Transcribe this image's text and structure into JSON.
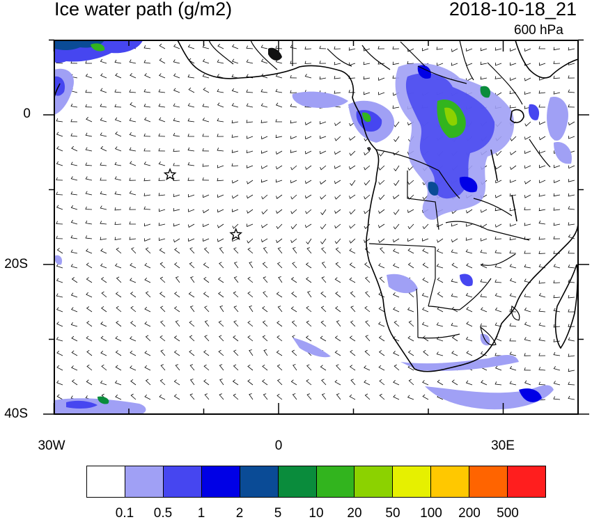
{
  "header": {
    "title": "Ice water path (g/m2)",
    "datetime": "2018-10-18_21",
    "level": "600 hPa"
  },
  "axes": {
    "lat_labels": [
      "0",
      "20S",
      "40S"
    ],
    "lon_labels": [
      "30W",
      "0",
      "30E"
    ]
  },
  "colorbar": {
    "colors": [
      "#ffffff",
      "#a0a0f5",
      "#4646f0",
      "#0000e6",
      "#0a4b96",
      "#0a8c3c",
      "#32b41e",
      "#8cd200",
      "#e6f000",
      "#ffc800",
      "#ff6400",
      "#ff1e1e"
    ],
    "labels": [
      "0.1",
      "0.5",
      "1",
      "2",
      "5",
      "10",
      "20",
      "50",
      "100",
      "200",
      "500"
    ]
  },
  "markers": [
    {
      "name": "star-marker-1",
      "lon": -14.5,
      "lat": -8
    },
    {
      "name": "star-marker-2",
      "lon": -5.7,
      "lat": -16
    }
  ]
}
